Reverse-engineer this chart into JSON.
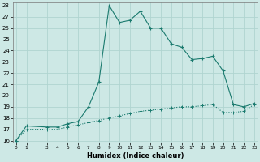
{
  "xlabel": "Humidex (Indice chaleur)",
  "bg_color": "#cde8e5",
  "grid_color": "#b0d4d0",
  "line_color": "#1a7a6e",
  "xlim": [
    0,
    23
  ],
  "ylim": [
    16,
    28
  ],
  "yticks": [
    16,
    17,
    18,
    19,
    20,
    21,
    22,
    23,
    24,
    25,
    26,
    27,
    28
  ],
  "xticks": [
    0,
    1,
    3,
    4,
    5,
    6,
    7,
    8,
    9,
    10,
    11,
    12,
    13,
    14,
    15,
    16,
    17,
    18,
    19,
    20,
    21,
    22,
    23
  ],
  "line1_x": [
    0,
    1,
    3,
    4,
    5,
    6,
    7,
    8,
    9,
    10,
    11,
    12,
    13,
    14,
    15,
    16,
    17,
    18,
    19,
    20,
    21,
    22,
    23
  ],
  "line1_y": [
    16.0,
    17.3,
    17.2,
    17.2,
    17.5,
    17.7,
    19.0,
    21.2,
    28.0,
    26.5,
    26.7,
    27.5,
    26.0,
    26.0,
    24.6,
    24.3,
    23.2,
    23.3,
    23.5,
    22.2,
    19.2,
    19.0,
    19.3
  ],
  "line2_x": [
    0,
    1,
    3,
    4,
    5,
    6,
    7,
    8,
    9,
    10,
    11,
    12,
    13,
    14,
    15,
    16,
    17,
    18,
    19,
    20,
    21,
    22,
    23
  ],
  "line2_y": [
    16.0,
    17.0,
    17.0,
    17.0,
    17.2,
    17.4,
    17.6,
    17.8,
    18.0,
    18.2,
    18.4,
    18.6,
    18.7,
    18.8,
    18.9,
    19.0,
    19.0,
    19.1,
    19.2,
    18.5,
    18.5,
    18.6,
    19.2
  ]
}
